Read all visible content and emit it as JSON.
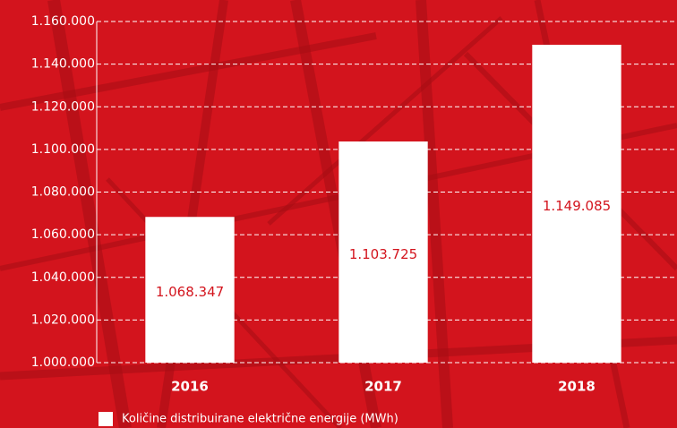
{
  "chart_data": {
    "type": "bar",
    "categories": [
      "2016",
      "2017",
      "2018"
    ],
    "series": [
      {
        "name": "Količine distribuirane električne energije (MWh)",
        "color": "#ffffff",
        "values": [
          1068347,
          1103725,
          1149085
        ],
        "value_labels": [
          "1.068.347",
          "1.103.725",
          "1.149.085"
        ]
      }
    ],
    "value_label_color": "#d3141d",
    "ylim": [
      1000000,
      1160000
    ],
    "yticks": [
      {
        "value": 1000000,
        "label": "1.000.000"
      },
      {
        "value": 1020000,
        "label": "1.020.000"
      },
      {
        "value": 1040000,
        "label": "1.040.000"
      },
      {
        "value": 1060000,
        "label": "1.060.000"
      },
      {
        "value": 1080000,
        "label": "1.080.000"
      },
      {
        "value": 1100000,
        "label": "1.100.000"
      },
      {
        "value": 1120000,
        "label": "1.120.000"
      },
      {
        "value": 1140000,
        "label": "1.140.000"
      },
      {
        "value": 1160000,
        "label": "1.160.000"
      }
    ],
    "grid": true
  }
}
